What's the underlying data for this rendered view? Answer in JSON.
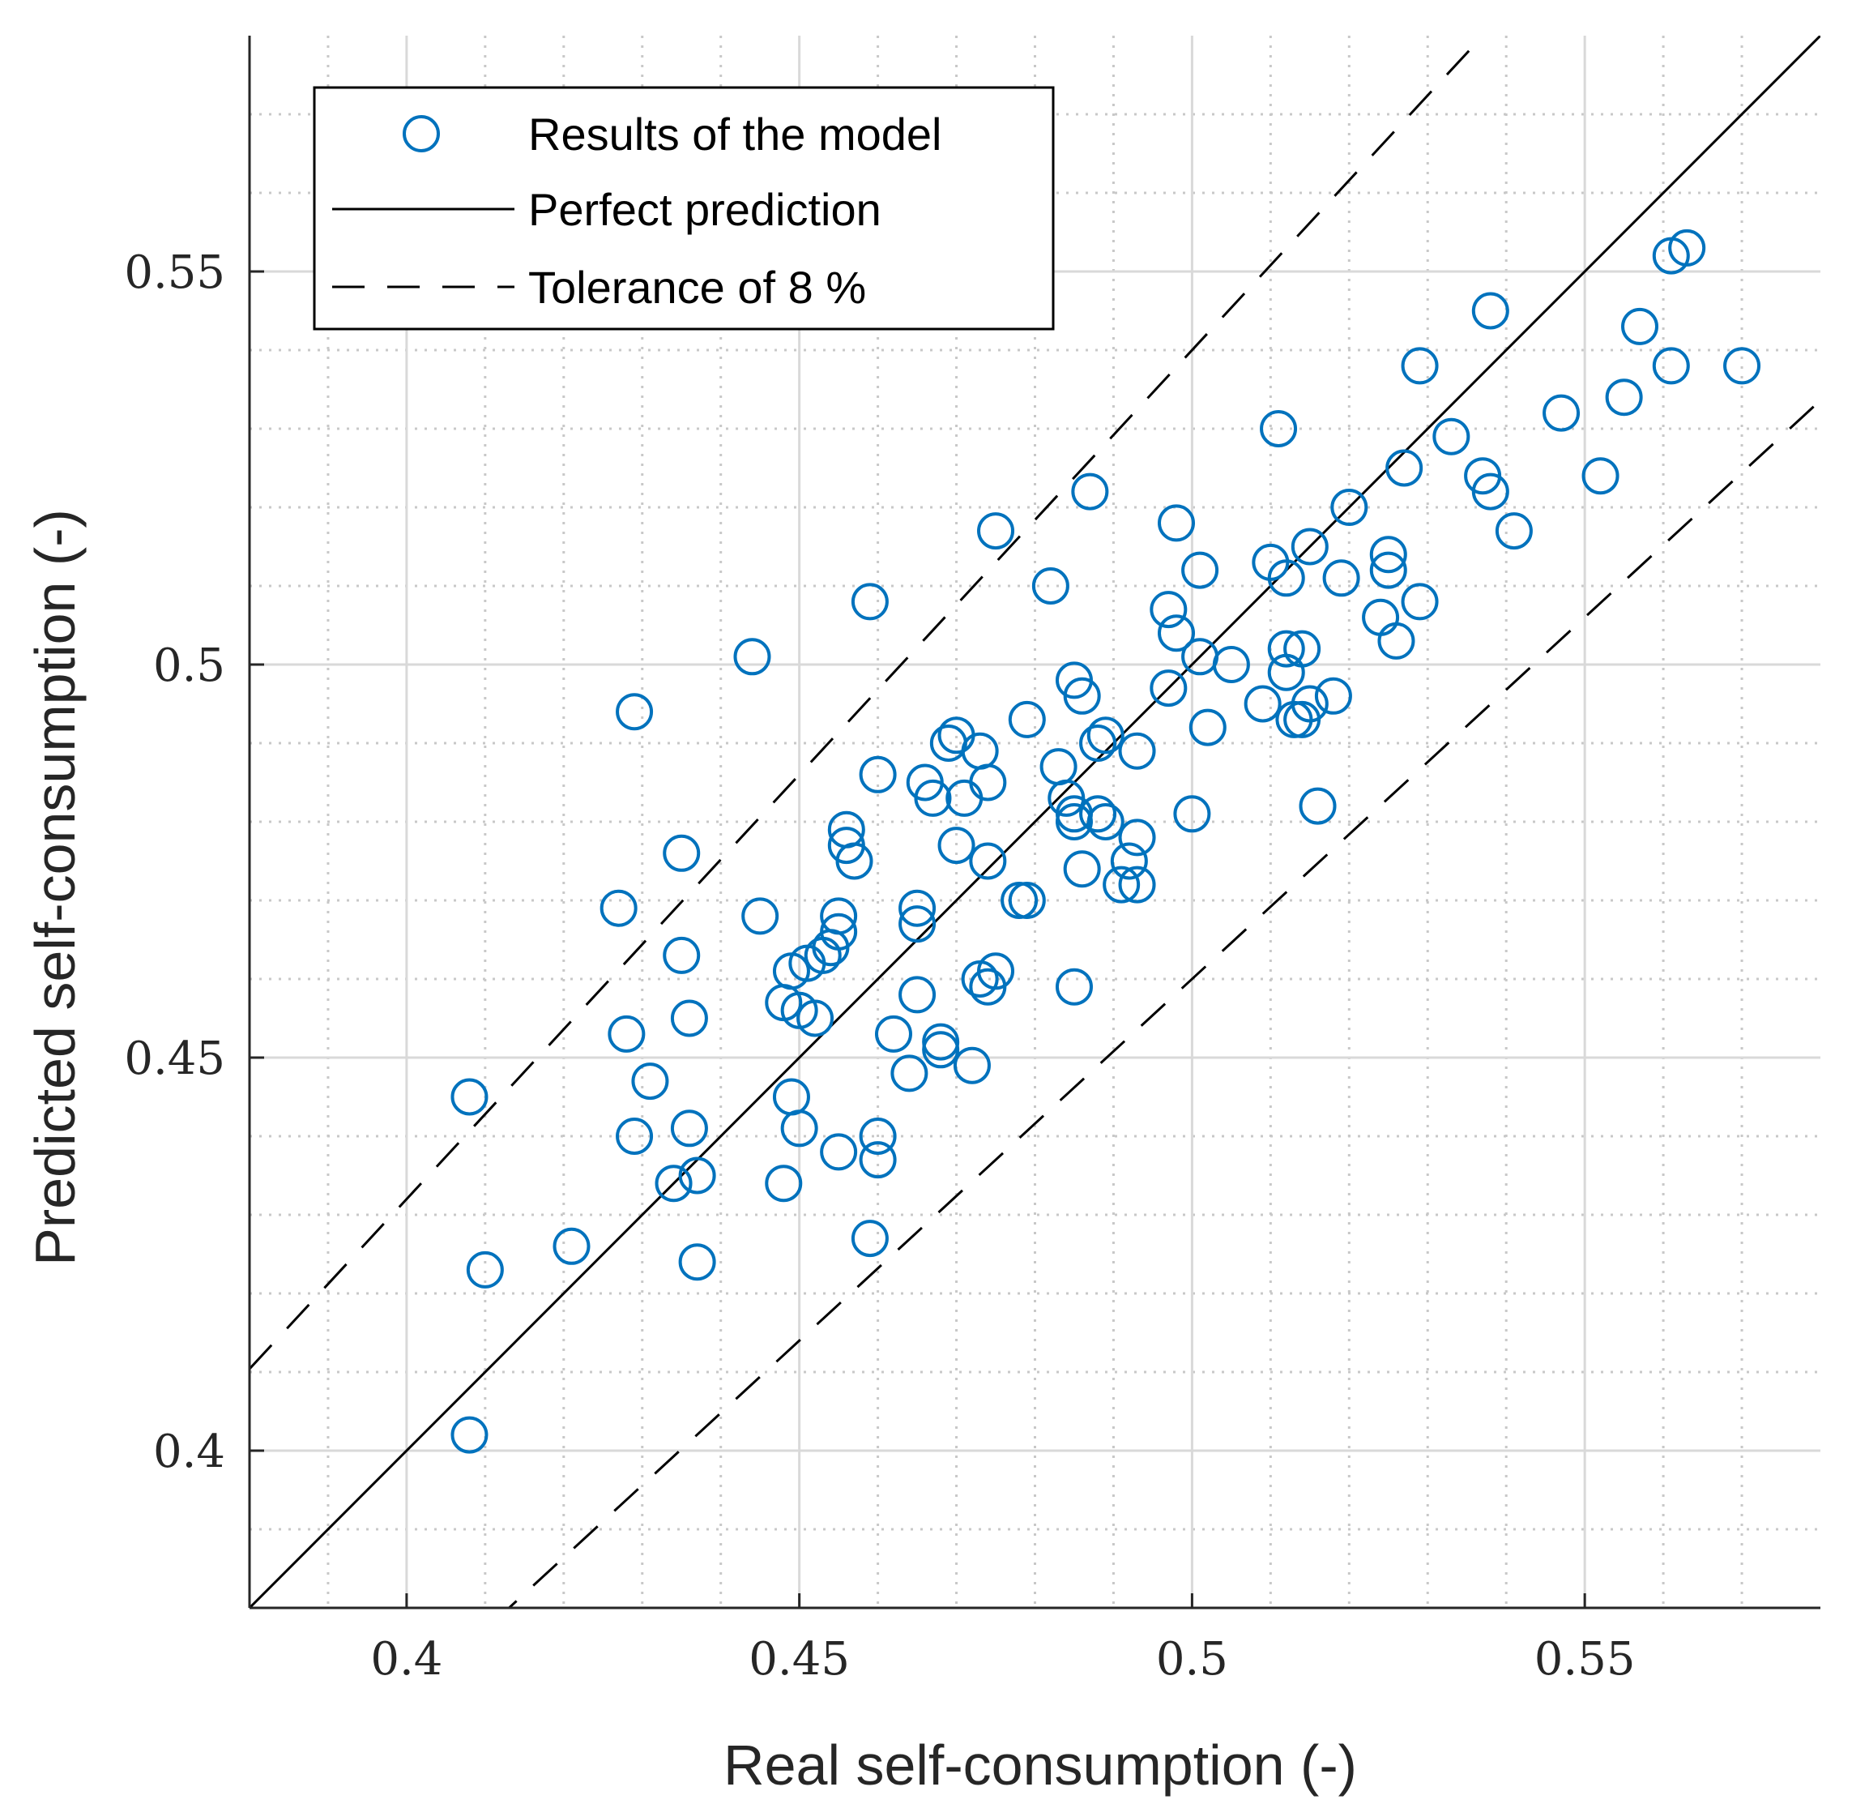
{
  "chart_data": {
    "type": "scatter",
    "xlabel": "Real self-consumption (-)",
    "ylabel": "Predicted self-consumption (-)",
    "xlim": [
      0.38,
      0.58
    ],
    "ylim": [
      0.38,
      0.58
    ],
    "major_ticks": [
      0.4,
      0.45,
      0.5,
      0.55
    ],
    "tick_labels": [
      "0.4",
      "0.45",
      "0.5",
      "0.55"
    ],
    "minor_step": 0.01,
    "grid": true,
    "legend_position": "top-left",
    "legend": {
      "results": "Results of the model",
      "perfect": "Perfect prediction",
      "tolerance": "Tolerance of 8 %"
    },
    "tolerance_fraction": 0.08,
    "colors": {
      "points": "#0072BD",
      "lines": "#000000",
      "major_grid": "#d9d9d9",
      "minor_grid": "#c8c8c8"
    },
    "points": [
      [
        0.408,
        0.402
      ],
      [
        0.408,
        0.445
      ],
      [
        0.41,
        0.423
      ],
      [
        0.421,
        0.426
      ],
      [
        0.427,
        0.469
      ],
      [
        0.428,
        0.453
      ],
      [
        0.429,
        0.44
      ],
      [
        0.429,
        0.494
      ],
      [
        0.431,
        0.447
      ],
      [
        0.434,
        0.434
      ],
      [
        0.435,
        0.463
      ],
      [
        0.435,
        0.476
      ],
      [
        0.436,
        0.441
      ],
      [
        0.436,
        0.455
      ],
      [
        0.437,
        0.435
      ],
      [
        0.437,
        0.424
      ],
      [
        0.444,
        0.501
      ],
      [
        0.445,
        0.468
      ],
      [
        0.448,
        0.434
      ],
      [
        0.448,
        0.457
      ],
      [
        0.449,
        0.445
      ],
      [
        0.449,
        0.461
      ],
      [
        0.45,
        0.456
      ],
      [
        0.45,
        0.441
      ],
      [
        0.451,
        0.462
      ],
      [
        0.452,
        0.455
      ],
      [
        0.453,
        0.463
      ],
      [
        0.454,
        0.464
      ],
      [
        0.455,
        0.466
      ],
      [
        0.455,
        0.468
      ],
      [
        0.455,
        0.438
      ],
      [
        0.456,
        0.479
      ],
      [
        0.456,
        0.477
      ],
      [
        0.457,
        0.475
      ],
      [
        0.459,
        0.508
      ],
      [
        0.459,
        0.427
      ],
      [
        0.46,
        0.44
      ],
      [
        0.46,
        0.437
      ],
      [
        0.46,
        0.486
      ],
      [
        0.462,
        0.453
      ],
      [
        0.464,
        0.448
      ],
      [
        0.465,
        0.458
      ],
      [
        0.465,
        0.467
      ],
      [
        0.465,
        0.469
      ],
      [
        0.466,
        0.485
      ],
      [
        0.467,
        0.483
      ],
      [
        0.468,
        0.452
      ],
      [
        0.468,
        0.451
      ],
      [
        0.469,
        0.49
      ],
      [
        0.47,
        0.491
      ],
      [
        0.47,
        0.477
      ],
      [
        0.471,
        0.483
      ],
      [
        0.472,
        0.449
      ],
      [
        0.473,
        0.46
      ],
      [
        0.474,
        0.459
      ],
      [
        0.473,
        0.489
      ],
      [
        0.474,
        0.475
      ],
      [
        0.474,
        0.485
      ],
      [
        0.475,
        0.517
      ],
      [
        0.475,
        0.461
      ],
      [
        0.478,
        0.47
      ],
      [
        0.479,
        0.493
      ],
      [
        0.479,
        0.47
      ],
      [
        0.482,
        0.51
      ],
      [
        0.483,
        0.487
      ],
      [
        0.484,
        0.483
      ],
      [
        0.485,
        0.481
      ],
      [
        0.485,
        0.48
      ],
      [
        0.485,
        0.498
      ],
      [
        0.486,
        0.496
      ],
      [
        0.486,
        0.474
      ],
      [
        0.485,
        0.459
      ],
      [
        0.487,
        0.522
      ],
      [
        0.488,
        0.481
      ],
      [
        0.488,
        0.49
      ],
      [
        0.489,
        0.491
      ],
      [
        0.489,
        0.48
      ],
      [
        0.491,
        0.472
      ],
      [
        0.492,
        0.475
      ],
      [
        0.493,
        0.478
      ],
      [
        0.493,
        0.472
      ],
      [
        0.493,
        0.489
      ],
      [
        0.497,
        0.497
      ],
      [
        0.497,
        0.507
      ],
      [
        0.498,
        0.518
      ],
      [
        0.498,
        0.504
      ],
      [
        0.5,
        0.481
      ],
      [
        0.501,
        0.512
      ],
      [
        0.501,
        0.501
      ],
      [
        0.502,
        0.492
      ],
      [
        0.505,
        0.5
      ],
      [
        0.509,
        0.495
      ],
      [
        0.51,
        0.513
      ],
      [
        0.511,
        0.53
      ],
      [
        0.512,
        0.511
      ],
      [
        0.512,
        0.502
      ],
      [
        0.512,
        0.499
      ],
      [
        0.513,
        0.493
      ],
      [
        0.514,
        0.493
      ],
      [
        0.514,
        0.502
      ],
      [
        0.515,
        0.515
      ],
      [
        0.515,
        0.495
      ],
      [
        0.516,
        0.482
      ],
      [
        0.518,
        0.496
      ],
      [
        0.519,
        0.511
      ],
      [
        0.52,
        0.52
      ],
      [
        0.524,
        0.506
      ],
      [
        0.525,
        0.514
      ],
      [
        0.525,
        0.512
      ],
      [
        0.526,
        0.503
      ],
      [
        0.527,
        0.525
      ],
      [
        0.529,
        0.538
      ],
      [
        0.529,
        0.508
      ],
      [
        0.533,
        0.529
      ],
      [
        0.537,
        0.524
      ],
      [
        0.538,
        0.545
      ],
      [
        0.538,
        0.522
      ],
      [
        0.541,
        0.517
      ],
      [
        0.547,
        0.532
      ],
      [
        0.552,
        0.524
      ],
      [
        0.555,
        0.534
      ],
      [
        0.557,
        0.543
      ],
      [
        0.561,
        0.552
      ],
      [
        0.561,
        0.538
      ],
      [
        0.563,
        0.553
      ],
      [
        0.57,
        0.538
      ]
    ]
  }
}
